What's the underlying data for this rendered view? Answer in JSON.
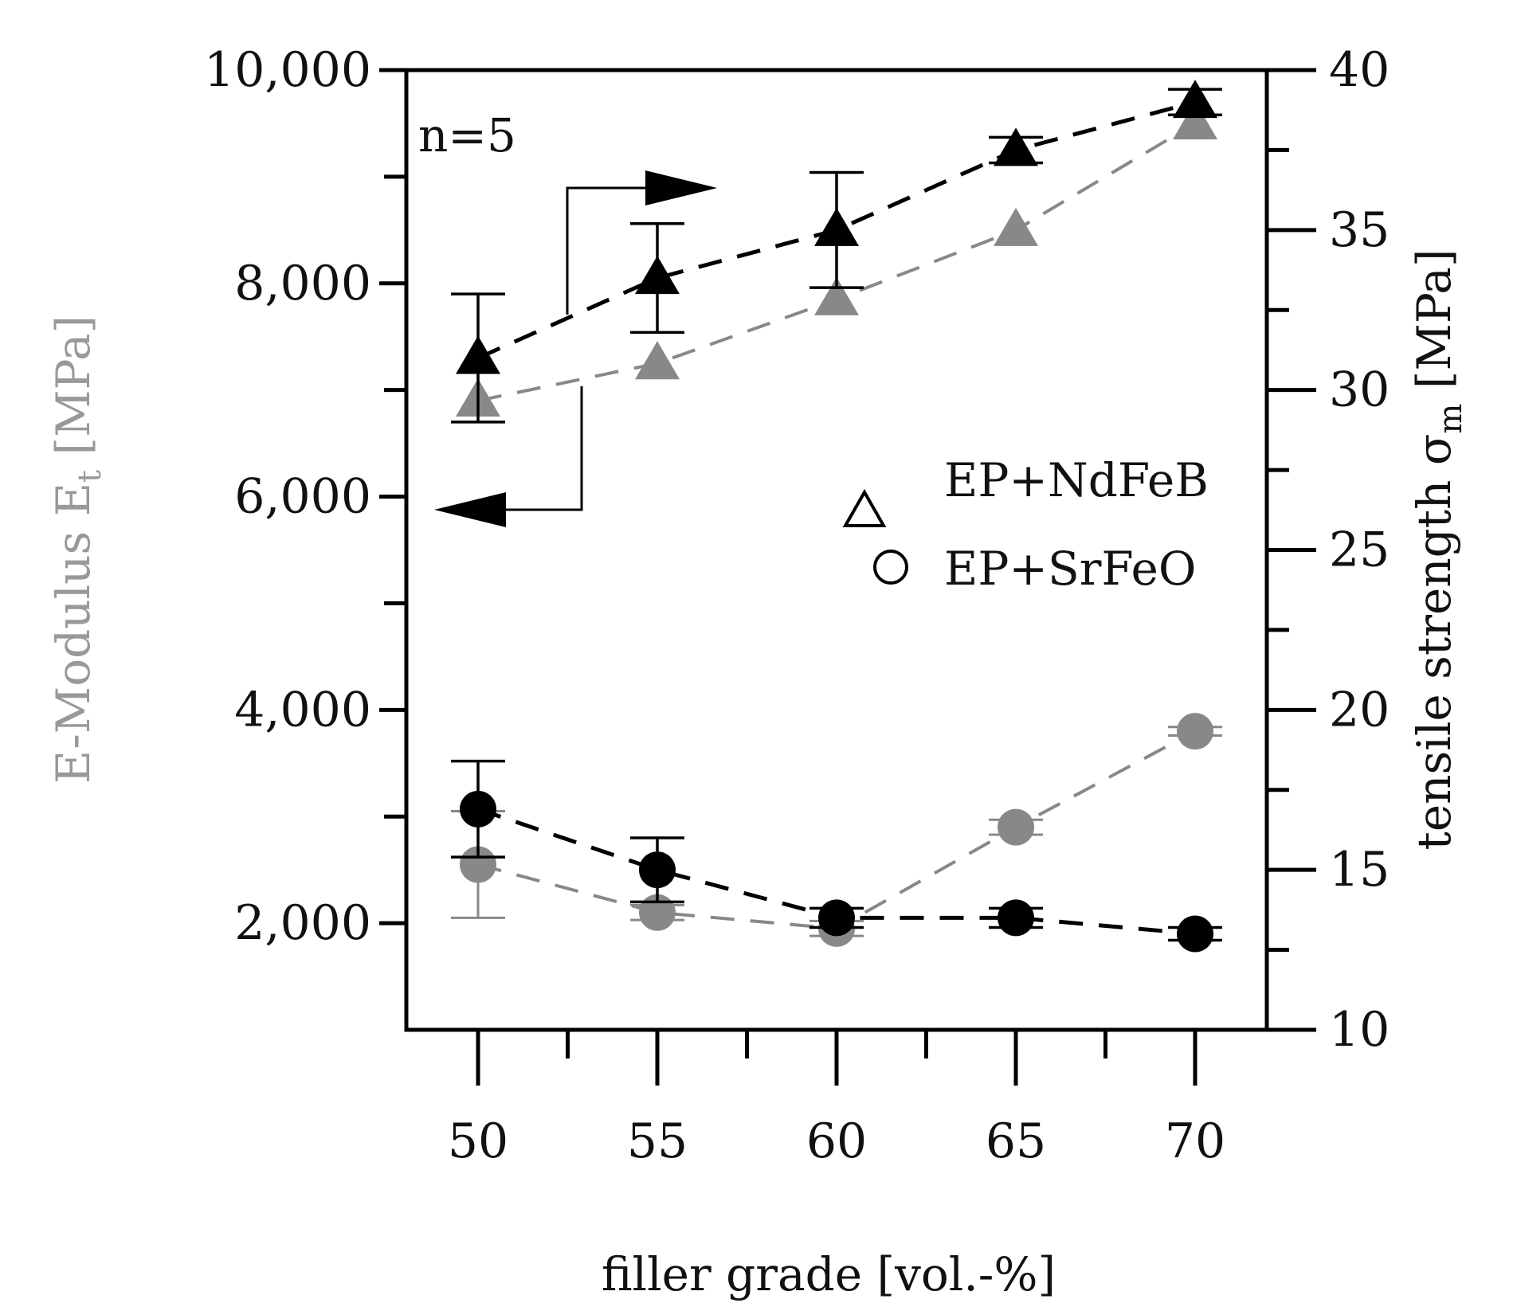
{
  "chart_data": {
    "type": "scatter",
    "annotation": "n=5",
    "xlabel": "filler grade [vol.-%]",
    "x": [
      50,
      55,
      60,
      65,
      70
    ],
    "x_ticks": [
      "50",
      "55",
      "60",
      "65",
      "70"
    ],
    "xlim": [
      48,
      72
    ],
    "left_axis": {
      "label_main": "E-Modulus E",
      "label_sub": "t",
      "label_unit": " [MPa]",
      "ylim": [
        1000,
        10000
      ],
      "ticks": [
        {
          "value": 2000,
          "label": "2,000"
        },
        {
          "value": 4000,
          "label": "4,000"
        },
        {
          "value": 6000,
          "label": "6,000"
        },
        {
          "value": 8000,
          "label": "8,000"
        },
        {
          "value": 10000,
          "label": "10,000"
        }
      ],
      "minor_ticks": [
        3000,
        5000,
        7000,
        9000
      ],
      "color": "#888888"
    },
    "right_axis": {
      "label_main": "tensile strength σ",
      "label_sub": "m",
      "label_unit": " [MPa]",
      "ylim": [
        10,
        40
      ],
      "ticks": [
        {
          "value": 10,
          "label": "10"
        },
        {
          "value": 15,
          "label": "15"
        },
        {
          "value": 20,
          "label": "20"
        },
        {
          "value": 25,
          "label": "25"
        },
        {
          "value": 30,
          "label": "30"
        },
        {
          "value": 35,
          "label": "35"
        },
        {
          "value": 40,
          "label": "40"
        }
      ],
      "minor_ticks": [
        12.5,
        17.5,
        22.5,
        27.5,
        32.5,
        37.5
      ]
    },
    "legend": [
      {
        "marker": "triangle",
        "label": "EP+NdFeB"
      },
      {
        "marker": "circle",
        "label": "EP+SrFeO"
      }
    ],
    "series": [
      {
        "name": "EP+NdFeB E-Modulus",
        "axis": "left",
        "marker": "triangle",
        "color": "#888888",
        "values": [
          6900,
          7250,
          7850,
          8500,
          9500
        ],
        "errors": [
          0,
          0,
          0,
          0,
          0
        ]
      },
      {
        "name": "EP+NdFeB tensile strength",
        "axis": "right",
        "marker": "triangle",
        "color": "#000000",
        "values": [
          31.0,
          33.5,
          35.0,
          37.5,
          39.0
        ],
        "errors": [
          2.0,
          1.7,
          1.8,
          0.4,
          0.4
        ]
      },
      {
        "name": "EP+SrFeO E-Modulus",
        "axis": "left",
        "marker": "circle",
        "color": "#888888",
        "values": [
          2550,
          2100,
          1950,
          2900,
          3800
        ],
        "errors": [
          500,
          70,
          70,
          70,
          40
        ]
      },
      {
        "name": "EP+SrFeO tensile strength",
        "axis": "right",
        "marker": "circle",
        "color": "#000000",
        "values": [
          16.9,
          15.0,
          13.5,
          13.5,
          13.0
        ],
        "errors": [
          1.5,
          1.0,
          0.3,
          0.3,
          0.2
        ]
      }
    ]
  }
}
